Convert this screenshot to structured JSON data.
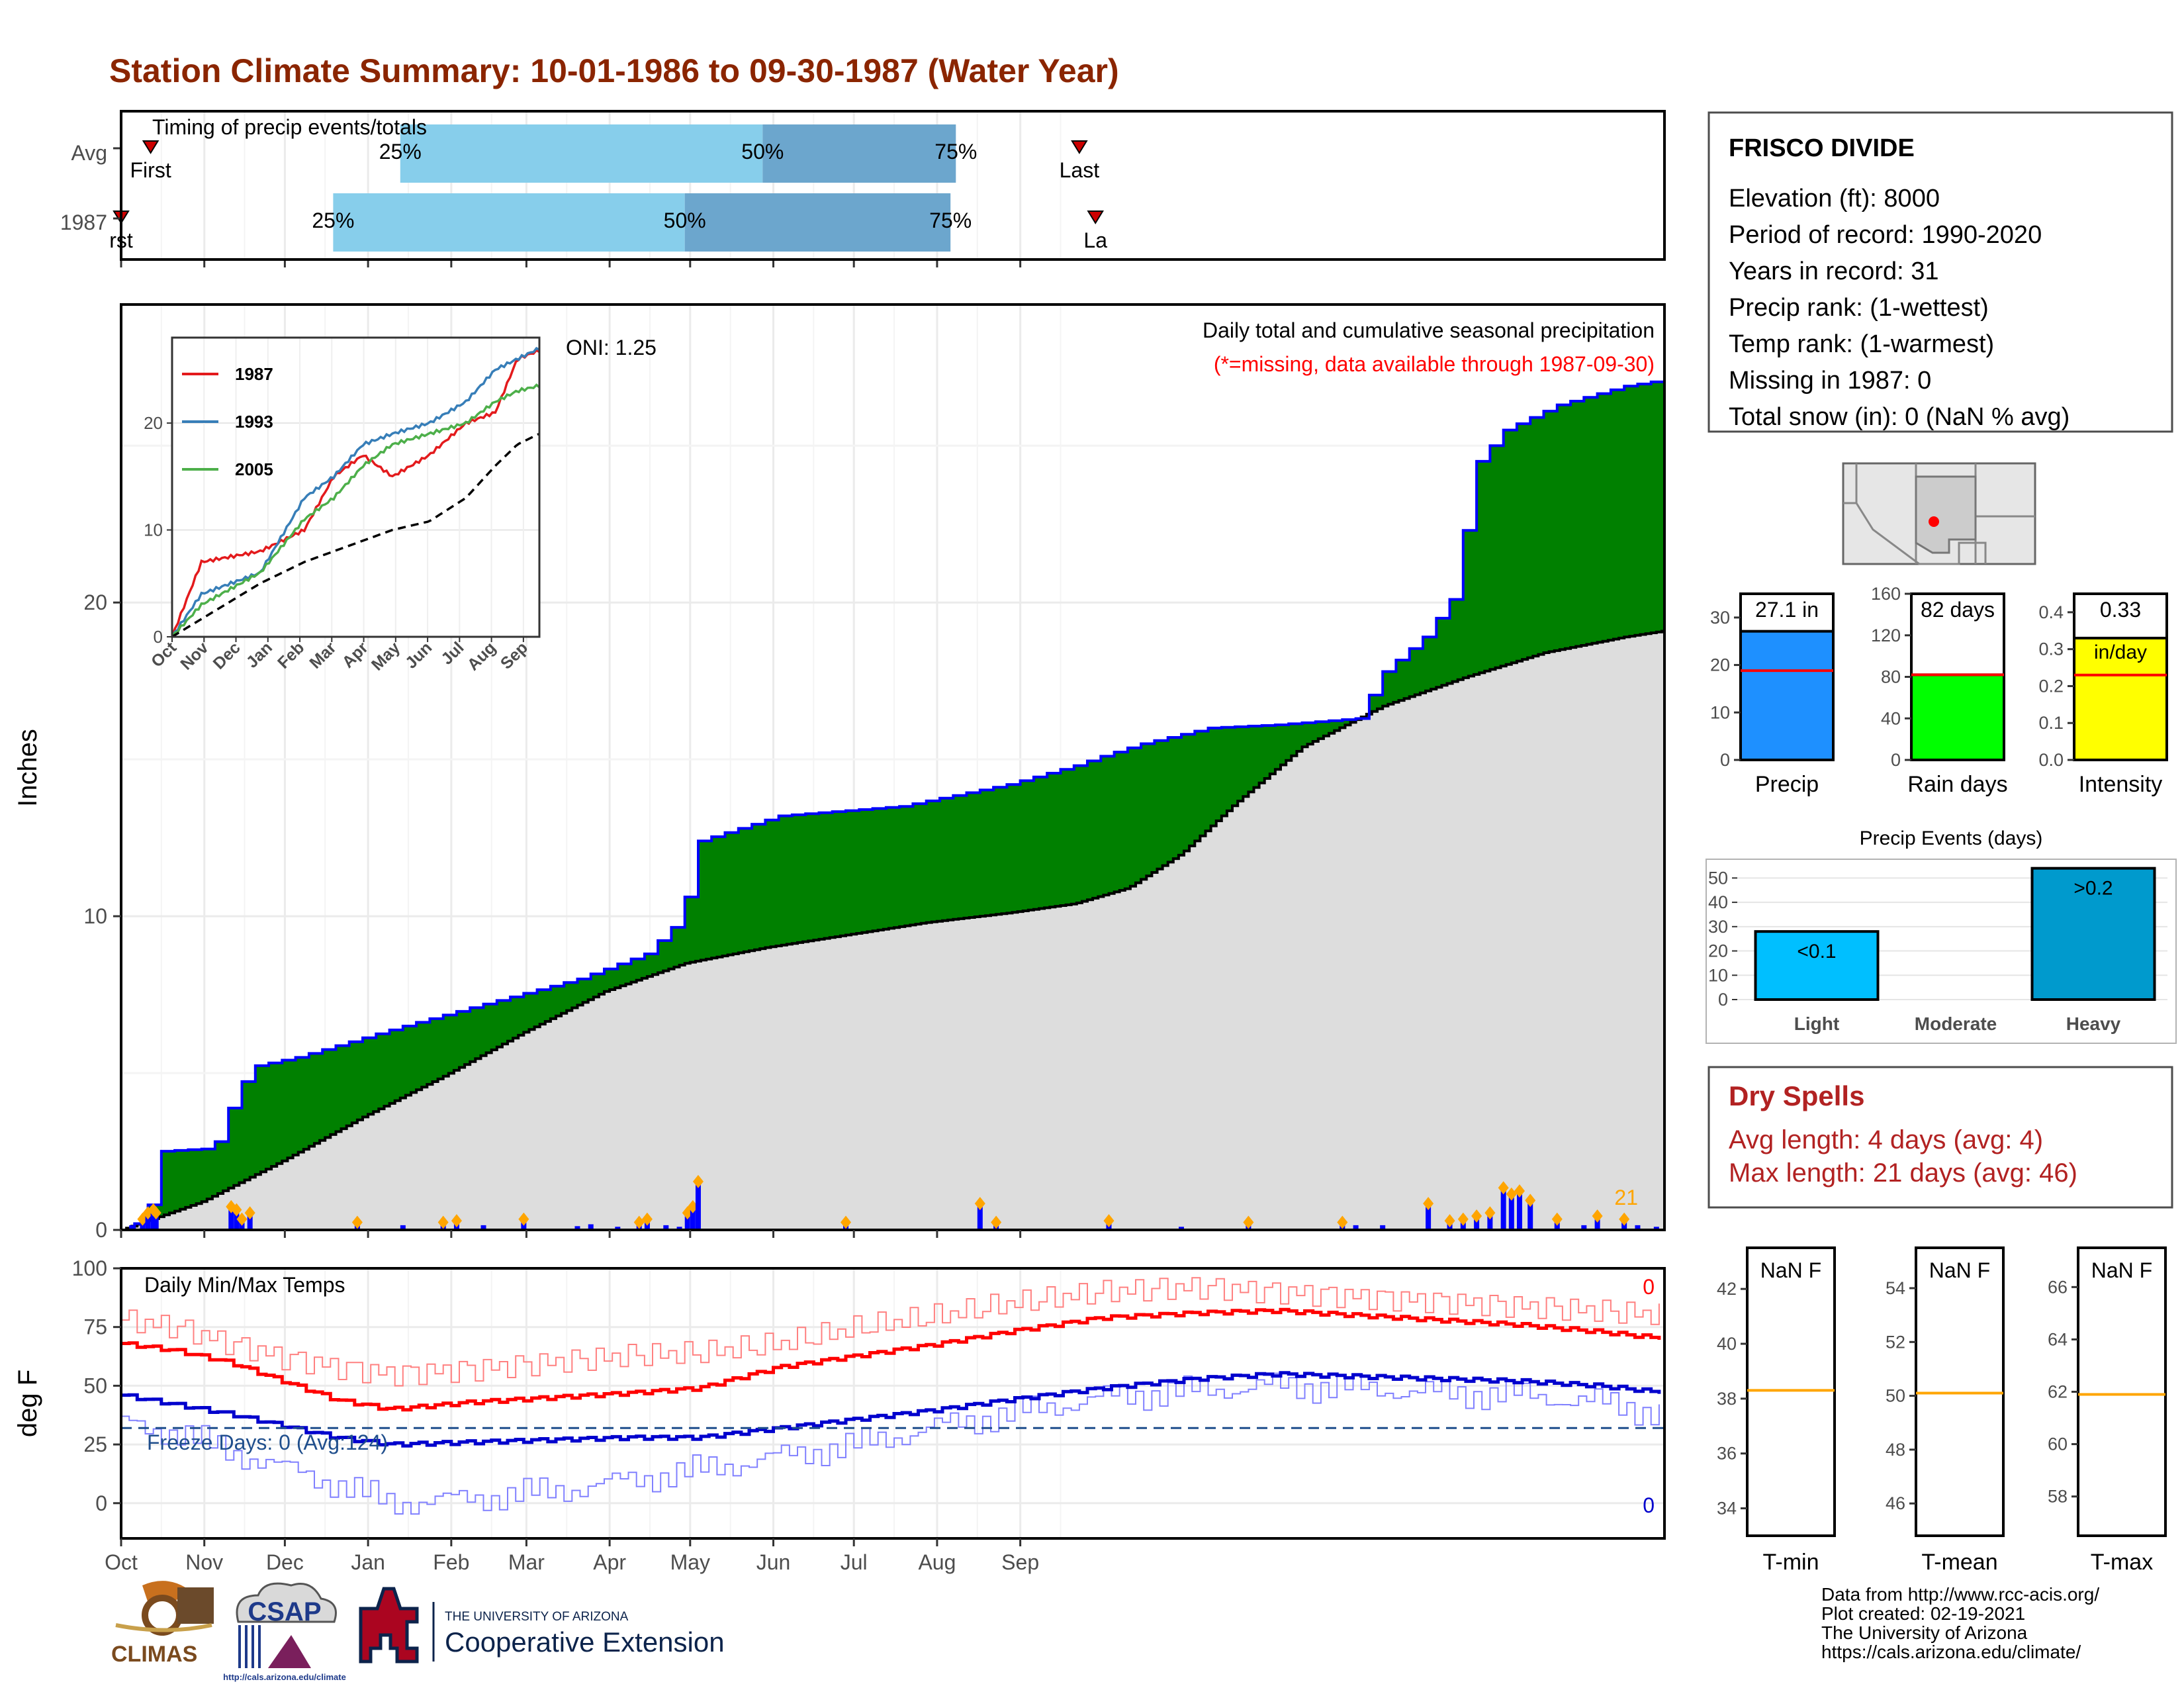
{
  "title": "Station Climate Summary: 10-01-1986 to 09-30-1987 (Water Year)",
  "months": [
    "Oct",
    "Nov",
    "Dec",
    "Jan",
    "Feb",
    "Mar",
    "Apr",
    "May",
    "Jun",
    "Jul",
    "Aug",
    "Sep"
  ],
  "colors": {
    "title": "#8B2500",
    "precip_fill": "#008000",
    "precip_line": "#0000FF",
    "normal_fill": "#DDDDDD",
    "timing_light": "#87CEEB",
    "timing_dark": "#6CA6CD",
    "marker": "#FFA500",
    "red": "#FF0000",
    "blue": "#0000CD",
    "dry": "#B22222"
  },
  "timing": {
    "label": "Timing of precip events/totals",
    "rows": [
      {
        "name": "Avg",
        "p25": "25%",
        "p50": "50%",
        "p75": "75%",
        "first": "First",
        "last": "Last",
        "p25_day": 104,
        "p50_day": 239,
        "p75_day": 311,
        "first_day": 11,
        "last_day": 357
      },
      {
        "name": "1987",
        "p25": "25%",
        "p50": "50%",
        "p75": "75%",
        "first": "rst",
        "last": "La",
        "p25_day": 79,
        "p50_day": 210,
        "p75_day": 309,
        "first_day": 0,
        "last_day": 363
      }
    ]
  },
  "main": {
    "ylabel": "Inches",
    "yticks": [
      "0",
      "10",
      "20"
    ],
    "label1": "Daily total and cumulative seasonal precipitation",
    "label2": "(*=missing, data available through 1987-09-30)",
    "oni": "ONI: 1.25",
    "count": "21"
  },
  "inset": {
    "legend": [
      "1987",
      "1993",
      "2005"
    ],
    "yticks": [
      "0",
      "10",
      "20"
    ],
    "months": [
      "Oct",
      "Nov",
      "Dec",
      "Jan",
      "Feb",
      "Mar",
      "Apr",
      "May",
      "Jun",
      "Jul",
      "Aug",
      "Sep"
    ]
  },
  "temps": {
    "label": "Daily Min/Max Temps",
    "ylabel": "deg F",
    "yticks": [
      "0",
      "25",
      "50",
      "75",
      "100"
    ],
    "freeze": "Freeze Days: 0 (Avg:124)",
    "max_count": "0",
    "min_count": "0"
  },
  "station": {
    "name": "FRISCO DIVIDE",
    "lines": [
      "Elevation (ft): 8000",
      "Period of record: 1990-2020",
      "Years in record: 31",
      "Precip rank:  (1-wettest)",
      "Temp rank:  (1-warmest)",
      "Missing in 1987: 0",
      "Total snow (in): 0 (NaN % avg)"
    ]
  },
  "bars": [
    {
      "label": "Precip",
      "value_label": "27.1 in",
      "value": 27.1,
      "avg": 18.8,
      "ymax": 35,
      "ticks": [
        "0",
        "10",
        "20",
        "30"
      ],
      "tickvals": [
        0,
        10,
        20,
        30
      ],
      "color": "#1E90FF"
    },
    {
      "label": "Rain days",
      "value_label": "82 days",
      "value": 82,
      "avg": 82,
      "ymax": 160,
      "ticks": [
        "0",
        "40",
        "80",
        "120",
        "160"
      ],
      "tickvals": [
        0,
        40,
        80,
        120,
        160
      ],
      "color": "#00FF00"
    },
    {
      "label": "Intensity",
      "value_label": "0.33",
      "value_label2": "in/day",
      "value": 0.33,
      "avg": 0.23,
      "ymax": 0.45,
      "ticks": [
        "0.0",
        "0.1",
        "0.2",
        "0.3",
        "0.4"
      ],
      "tickvals": [
        0,
        0.1,
        0.2,
        0.3,
        0.4
      ],
      "color": "#FFFF00"
    }
  ],
  "events": {
    "title": "Precip Events (days)",
    "ticks": [
      "0",
      "10",
      "20",
      "30",
      "40",
      "50"
    ],
    "categories": [
      "Light",
      "Moderate",
      "Heavy"
    ],
    "values": [
      28,
      0,
      54
    ],
    "labels": [
      "<0.1",
      "",
      ">0.2"
    ],
    "colors": [
      "#00BFFF",
      "#00BFFF",
      "#009ACD"
    ]
  },
  "dry": {
    "title": "Dry Spells",
    "avg": "Avg length: 4 days (avg: 4)",
    "max": "Max length: 21 days (avg: 46)"
  },
  "tboxes": [
    {
      "label": "T-min",
      "value": "NaN F",
      "ticks": [
        "34",
        "36",
        "38",
        "40",
        "42"
      ],
      "tickvals": [
        34,
        36,
        38,
        40,
        42
      ],
      "ymin": 33,
      "ymax": 43.5,
      "avg": 38.3
    },
    {
      "label": "T-mean",
      "value": "NaN F",
      "ticks": [
        "46",
        "48",
        "50",
        "52",
        "54"
      ],
      "tickvals": [
        46,
        48,
        50,
        52,
        54
      ],
      "ymin": 44.8,
      "ymax": 55.5,
      "avg": 50.1
    },
    {
      "label": "T-max",
      "value": "NaN F",
      "ticks": [
        "58",
        "60",
        "62",
        "64",
        "66"
      ],
      "tickvals": [
        58,
        60,
        62,
        64,
        66
      ],
      "ymin": 56.5,
      "ymax": 67.5,
      "avg": 61.9
    }
  ],
  "footer": {
    "lines": [
      "Data from http://www.rcc-acis.org/",
      "Plot created: 02-19-2021",
      "The University of Arizona",
      "https://cals.arizona.edu/climate/"
    ],
    "climas": "CLIMAS",
    "csap": "CSAP",
    "csap_url": "http://cals.arizona.edu/climate",
    "ua_small": "THE UNIVERSITY OF ARIZONA",
    "ua_big": "Cooperative Extension"
  },
  "chart_data": {
    "type": "area",
    "title": "Station Climate Summary: 10-01-1986 to 09-30-1987 (Water Year)",
    "ylabel": "Inches",
    "ylim": [
      0,
      29.5
    ],
    "x_months": [
      "Oct",
      "Nov",
      "Dec",
      "Jan",
      "Feb",
      "Mar",
      "Apr",
      "May",
      "Jun",
      "Jul",
      "Aug",
      "Sep"
    ],
    "cumulative_1987_knots": [
      [
        0,
        0
      ],
      [
        5,
        0.2
      ],
      [
        10,
        0.8
      ],
      [
        13,
        2.5
      ],
      [
        34,
        2.6
      ],
      [
        41,
        4.1
      ],
      [
        48,
        5.2
      ],
      [
        65,
        5.5
      ],
      [
        85,
        6.0
      ],
      [
        105,
        6.5
      ],
      [
        135,
        7.2
      ],
      [
        170,
        8.0
      ],
      [
        195,
        8.8
      ],
      [
        208,
        9.9
      ],
      [
        215,
        12.4
      ],
      [
        245,
        13.2
      ],
      [
        290,
        13.5
      ],
      [
        330,
        14.2
      ],
      [
        355,
        14.8
      ],
      [
        365,
        15.1
      ],
      [
        380,
        15.5
      ],
      [
        405,
        16.0
      ],
      [
        430,
        16.1
      ],
      [
        460,
        16.3
      ],
      [
        470,
        17.8
      ],
      [
        485,
        18.9
      ],
      [
        495,
        20.1
      ],
      [
        505,
        24.5
      ],
      [
        515,
        25.5
      ],
      [
        535,
        26.3
      ],
      [
        560,
        26.9
      ],
      [
        575,
        27.1
      ]
    ],
    "cumulative_normal_knots": [
      [
        0,
        0
      ],
      [
        30,
        0.9
      ],
      [
        60,
        2.2
      ],
      [
        90,
        3.6
      ],
      [
        120,
        4.9
      ],
      [
        150,
        6.3
      ],
      [
        180,
        7.6
      ],
      [
        210,
        8.5
      ],
      [
        240,
        9.0
      ],
      [
        270,
        9.4
      ],
      [
        300,
        9.8
      ],
      [
        330,
        10.1
      ],
      [
        355,
        10.4
      ],
      [
        375,
        10.9
      ],
      [
        395,
        12.0
      ],
      [
        415,
        13.6
      ],
      [
        440,
        15.4
      ],
      [
        470,
        16.7
      ],
      [
        500,
        17.6
      ],
      [
        530,
        18.4
      ],
      [
        560,
        18.9
      ],
      [
        575,
        19.1
      ]
    ],
    "daily_precip_bars": [
      [
        4,
        0.15
      ],
      [
        8,
        0.3
      ],
      [
        10,
        0.5
      ],
      [
        12,
        0.6
      ],
      [
        13,
        0.5
      ],
      [
        41,
        0.7
      ],
      [
        43,
        0.6
      ],
      [
        45,
        0.3
      ],
      [
        48,
        0.5
      ],
      [
        88,
        0.2
      ],
      [
        105,
        0.15
      ],
      [
        120,
        0.2
      ],
      [
        125,
        0.25
      ],
      [
        135,
        0.15
      ],
      [
        150,
        0.3
      ],
      [
        170,
        0.12
      ],
      [
        175,
        0.18
      ],
      [
        185,
        0.1
      ],
      [
        193,
        0.2
      ],
      [
        196,
        0.3
      ],
      [
        203,
        0.15
      ],
      [
        208,
        0.1
      ],
      [
        211,
        0.5
      ],
      [
        213,
        0.7
      ],
      [
        215,
        1.5
      ],
      [
        270,
        0.2
      ],
      [
        320,
        0.8
      ],
      [
        326,
        0.2
      ],
      [
        368,
        0.25
      ],
      [
        395,
        0.1
      ],
      [
        420,
        0.2
      ],
      [
        455,
        0.2
      ],
      [
        460,
        0.15
      ],
      [
        470,
        0.15
      ],
      [
        487,
        0.8
      ],
      [
        495,
        0.25
      ],
      [
        500,
        0.3
      ],
      [
        505,
        0.4
      ],
      [
        510,
        0.5
      ],
      [
        515,
        1.3
      ],
      [
        518,
        1.1
      ],
      [
        521,
        1.2
      ],
      [
        525,
        0.9
      ],
      [
        535,
        0.3
      ],
      [
        545,
        0.15
      ],
      [
        550,
        0.4
      ],
      [
        560,
        0.3
      ],
      [
        565,
        0.15
      ],
      [
        572,
        0.1
      ]
    ],
    "temp_max_avg_knots": [
      [
        0,
        68
      ],
      [
        20,
        65
      ],
      [
        40,
        60
      ],
      [
        60,
        52
      ],
      [
        80,
        44
      ],
      [
        100,
        40
      ],
      [
        130,
        43
      ],
      [
        160,
        45
      ],
      [
        190,
        47
      ],
      [
        215,
        49
      ],
      [
        245,
        58
      ],
      [
        275,
        63
      ],
      [
        305,
        68
      ],
      [
        330,
        73
      ],
      [
        365,
        79
      ],
      [
        400,
        81
      ],
      [
        430,
        82
      ],
      [
        460,
        80
      ],
      [
        490,
        78
      ],
      [
        520,
        76
      ],
      [
        550,
        73
      ],
      [
        575,
        70
      ]
    ],
    "temp_min_avg_knots": [
      [
        0,
        46
      ],
      [
        20,
        42
      ],
      [
        40,
        38
      ],
      [
        60,
        33
      ],
      [
        80,
        28
      ],
      [
        100,
        25
      ],
      [
        130,
        26
      ],
      [
        160,
        27
      ],
      [
        190,
        28
      ],
      [
        215,
        28
      ],
      [
        245,
        32
      ],
      [
        275,
        36
      ],
      [
        305,
        40
      ],
      [
        330,
        44
      ],
      [
        365,
        49
      ],
      [
        400,
        53
      ],
      [
        430,
        55
      ],
      [
        460,
        54
      ],
      [
        490,
        53
      ],
      [
        520,
        52
      ],
      [
        550,
        50
      ],
      [
        575,
        47
      ]
    ],
    "temp_max_obs_knots": [
      [
        0,
        78
      ],
      [
        20,
        75
      ],
      [
        40,
        68
      ],
      [
        60,
        62
      ],
      [
        80,
        58
      ],
      [
        100,
        55
      ],
      [
        130,
        57
      ],
      [
        160,
        60
      ],
      [
        190,
        63
      ],
      [
        215,
        64
      ],
      [
        245,
        68
      ],
      [
        275,
        75
      ],
      [
        305,
        80
      ],
      [
        330,
        85
      ],
      [
        365,
        90
      ],
      [
        400,
        92
      ],
      [
        430,
        90
      ],
      [
        460,
        88
      ],
      [
        490,
        86
      ],
      [
        520,
        84
      ],
      [
        550,
        82
      ],
      [
        575,
        80
      ]
    ],
    "temp_min_obs_knots": [
      [
        0,
        34
      ],
      [
        20,
        30
      ],
      [
        40,
        22
      ],
      [
        60,
        15
      ],
      [
        80,
        8
      ],
      [
        100,
        0
      ],
      [
        130,
        2
      ],
      [
        160,
        5
      ],
      [
        190,
        10
      ],
      [
        215,
        14
      ],
      [
        245,
        20
      ],
      [
        275,
        25
      ],
      [
        305,
        33
      ],
      [
        330,
        38
      ],
      [
        365,
        45
      ],
      [
        400,
        48
      ],
      [
        430,
        50
      ],
      [
        460,
        49
      ],
      [
        490,
        47
      ],
      [
        520,
        46
      ],
      [
        550,
        43
      ],
      [
        575,
        38
      ]
    ],
    "freeze_line": 32,
    "inset_series": [
      {
        "name": "1987",
        "color": "#E31A1C",
        "knots": [
          [
            0,
            0
          ],
          [
            20,
            7
          ],
          [
            60,
            8
          ],
          [
            90,
            10
          ],
          [
            110,
            15
          ],
          [
            130,
            17
          ],
          [
            150,
            15
          ],
          [
            175,
            17
          ],
          [
            200,
            20
          ],
          [
            220,
            21
          ],
          [
            235,
            26
          ],
          [
            250,
            26.8
          ]
        ]
      },
      {
        "name": "1993",
        "color": "#377EB8",
        "knots": [
          [
            0,
            0
          ],
          [
            20,
            4
          ],
          [
            60,
            6
          ],
          [
            90,
            13
          ],
          [
            110,
            15
          ],
          [
            130,
            18
          ],
          [
            150,
            19
          ],
          [
            175,
            20
          ],
          [
            200,
            22
          ],
          [
            220,
            25
          ],
          [
            235,
            26
          ],
          [
            250,
            27
          ]
        ]
      },
      {
        "name": "2005",
        "color": "#4DAF4A",
        "knots": [
          [
            0,
            0
          ],
          [
            20,
            3
          ],
          [
            60,
            6
          ],
          [
            90,
            11
          ],
          [
            110,
            13
          ],
          [
            130,
            16
          ],
          [
            150,
            18
          ],
          [
            175,
            19
          ],
          [
            200,
            20
          ],
          [
            220,
            22
          ],
          [
            235,
            23
          ],
          [
            250,
            23.5
          ]
        ]
      },
      {
        "name": "",
        "color": "#000000",
        "dash": true,
        "knots": [
          [
            0,
            0
          ],
          [
            30,
            2.5
          ],
          [
            60,
            5
          ],
          [
            90,
            7
          ],
          [
            110,
            8
          ],
          [
            130,
            9
          ],
          [
            150,
            10
          ],
          [
            175,
            10.8
          ],
          [
            200,
            13
          ],
          [
            220,
            16
          ],
          [
            235,
            18
          ],
          [
            250,
            19
          ]
        ]
      }
    ]
  }
}
